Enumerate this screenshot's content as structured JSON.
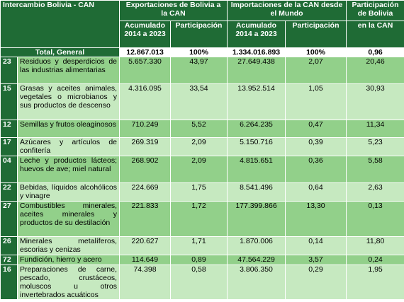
{
  "header": {
    "title": "Intercambio Bolivia - CAN",
    "exports_group": "Exportaciones de Bolivia a la CAN",
    "imports_group": "Importaciones de la CAN desde el Mundo",
    "share_group": "Participación de Bolivia",
    "col_exp_acum": "Acumulado 2014 a 2023",
    "col_exp_part": "Participación",
    "col_imp_acum": "Acumulado 2014 a 2023",
    "col_imp_part": "Participación",
    "col_share": "en la CAN"
  },
  "total": {
    "label": "Total, General",
    "exp_acum": "12.867.013",
    "exp_part": "100%",
    "imp_acum": "1.334.016.893",
    "imp_part": "100%",
    "share": "0,96"
  },
  "rows": [
    {
      "code": "23",
      "desc": "Residuos y desperdicios de las industrias alimentarias",
      "exp_acum": "5.657.330",
      "exp_part": "43,97",
      "imp_acum": "27.649.438",
      "imp_part": "2,07",
      "share": "20,46"
    },
    {
      "code": "15",
      "desc": "Grasas y aceites animales, vegetales o microbianos y sus productos de descenso",
      "exp_acum": "4.316.095",
      "exp_part": "33,54",
      "imp_acum": "13.952.514",
      "imp_part": "1,05",
      "share": "30,93"
    },
    {
      "code": "12",
      "desc": "Semillas y frutos oleaginosos",
      "exp_acum": "710.249",
      "exp_part": "5,52",
      "imp_acum": "6.264.235",
      "imp_part": "0,47",
      "share": "11,34"
    },
    {
      "code": "17",
      "desc": "Azúcares y artículos de confitería",
      "exp_acum": "269.319",
      "exp_part": "2,09",
      "imp_acum": "5.150.716",
      "imp_part": "0,39",
      "share": "5,23"
    },
    {
      "code": "04",
      "desc": "Leche y productos lácteos; huevos de ave; miel natural",
      "exp_acum": "268.902",
      "exp_part": "2,09",
      "imp_acum": "4.815.651",
      "imp_part": "0,36",
      "share": "5,58"
    },
    {
      "code": "22",
      "desc": "Bebidas, líquidos alcohólicos y vinagre",
      "exp_acum": "224.669",
      "exp_part": "1,75",
      "imp_acum": "8.541.496",
      "imp_part": "0,64",
      "share": "2,63"
    },
    {
      "code": "27",
      "desc": "Combustibles minerales, aceites minerales y productos de su destilación",
      "exp_acum": "221.833",
      "exp_part": "1,72",
      "imp_acum": "177.399.866",
      "imp_part": "13,30",
      "share": "0,13"
    },
    {
      "code": "26",
      "desc": "Minerales metalíferos, escorias y cenizas",
      "exp_acum": "220.627",
      "exp_part": "1,71",
      "imp_acum": "1.870.006",
      "imp_part": "0,14",
      "share": "11,80"
    },
    {
      "code": "72",
      "desc": "Fundición, hierro y acero",
      "exp_acum": "114.649",
      "exp_part": "0,89",
      "imp_acum": "47.564.229",
      "imp_part": "3,57",
      "share": "0,24"
    },
    {
      "code": "16",
      "desc": "Preparaciones de carne, pescado, crustáceos, moluscos u otros invertebrados acuáticos",
      "exp_acum": "74.398",
      "exp_part": "0,58",
      "imp_acum": "3.806.350",
      "imp_part": "0,29",
      "share": "1,95"
    }
  ]
}
